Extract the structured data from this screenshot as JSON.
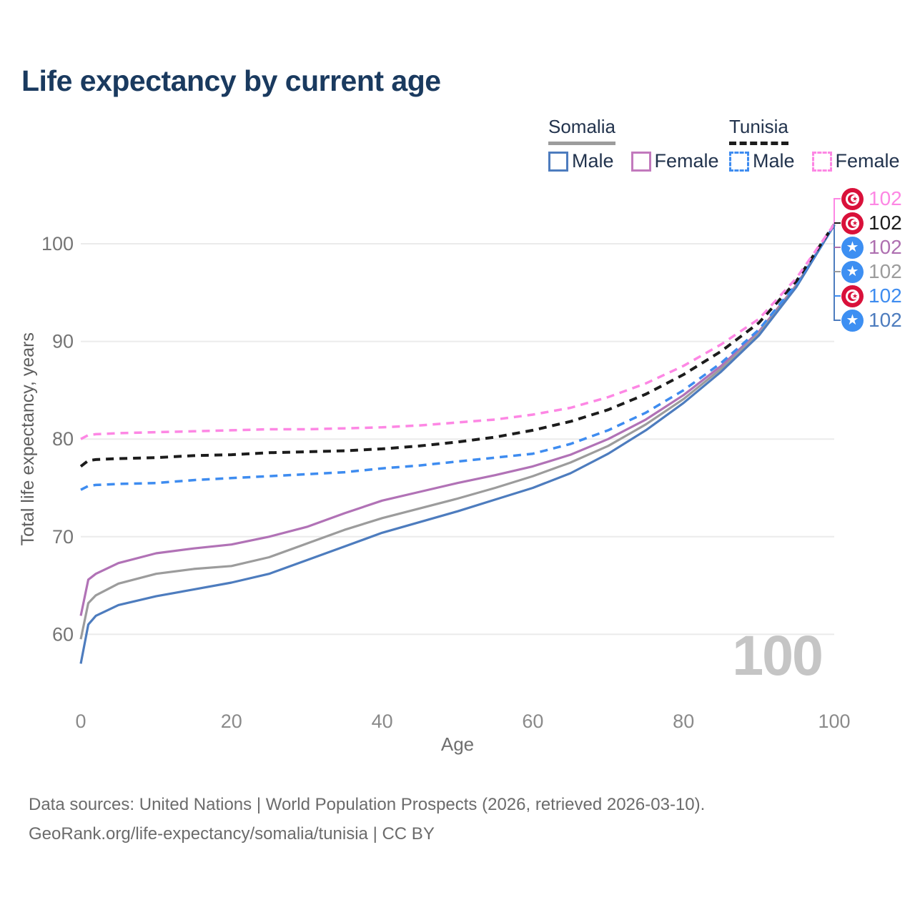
{
  "title": "Life expectancy by current age",
  "legend": {
    "somalia": {
      "label": "Somalia",
      "male": "Male",
      "female": "Female"
    },
    "tunisia": {
      "label": "Tunisia",
      "male": "Male",
      "female": "Female"
    }
  },
  "right_labels": [
    {
      "country": "tunisia",
      "series": "Tunisia Female",
      "value": "102",
      "color": "#fd87e4"
    },
    {
      "country": "tunisia",
      "series": "Tunisia",
      "value": "102",
      "color": "#1c1c1c"
    },
    {
      "country": "somalia",
      "series": "Somalia Female",
      "value": "102",
      "color": "#ae6fb0"
    },
    {
      "country": "somalia",
      "series": "Somalia",
      "value": "102",
      "color": "#9c9c9c"
    },
    {
      "country": "tunisia",
      "series": "Tunisia Male",
      "value": "102",
      "color": "#3e8cf0"
    },
    {
      "country": "somalia",
      "series": "Somalia Male",
      "value": "102",
      "color": "#4d7cbe"
    }
  ],
  "watermark": "100",
  "footer": {
    "line1": "Data sources: United Nations | World Population Prospects (2026, retrieved 2026-03-10).",
    "line2": "GeoRank.org/life-expectancy/somalia/tunisia | CC BY"
  },
  "chart_data": {
    "type": "line",
    "title": "Life expectancy by current age",
    "xlabel": "Age",
    "ylabel": "Total life expectancy, years",
    "xlim": [
      0,
      100
    ],
    "ylim": [
      56,
      103
    ],
    "x_ticks": [
      0,
      20,
      40,
      60,
      80,
      100
    ],
    "y_ticks": [
      60,
      70,
      80,
      90,
      100
    ],
    "grid": "horizontal",
    "legend_position": "top-right",
    "ages": [
      0,
      1,
      2,
      5,
      10,
      15,
      20,
      25,
      30,
      35,
      40,
      45,
      50,
      55,
      60,
      65,
      70,
      75,
      80,
      85,
      90,
      95,
      100
    ],
    "series": [
      {
        "name": "Somalia Female",
        "country": "Somalia",
        "sex": "female",
        "style": "solid",
        "color": "#b172b6",
        "end_label": "102",
        "values": [
          61.9,
          65.6,
          66.2,
          67.3,
          68.3,
          68.8,
          69.2,
          70.0,
          71.0,
          72.4,
          73.7,
          74.6,
          75.5,
          76.3,
          77.2,
          78.4,
          80.0,
          82.0,
          84.5,
          87.5,
          91.0,
          95.8,
          101.9
        ]
      },
      {
        "name": "Somalia",
        "country": "Somalia",
        "sex": "total",
        "style": "solid",
        "color": "#9c9c9c",
        "end_label": "102",
        "values": [
          59.5,
          63.2,
          64.0,
          65.2,
          66.2,
          66.7,
          67.0,
          67.9,
          69.3,
          70.7,
          71.9,
          72.9,
          73.9,
          75.0,
          76.2,
          77.6,
          79.3,
          81.5,
          84.1,
          87.2,
          90.8,
          95.7,
          101.9
        ]
      },
      {
        "name": "Somalia Male",
        "country": "Somalia",
        "sex": "male",
        "style": "solid",
        "color": "#4d7cbe",
        "end_label": "102",
        "values": [
          57.0,
          61.0,
          61.9,
          63.0,
          63.9,
          64.6,
          65.3,
          66.2,
          67.6,
          69.0,
          70.4,
          71.5,
          72.6,
          73.8,
          75.0,
          76.5,
          78.5,
          80.9,
          83.7,
          86.9,
          90.6,
          95.6,
          101.9
        ]
      },
      {
        "name": "Tunisia Male",
        "country": "Tunisia",
        "sex": "male",
        "style": "dashed",
        "color": "#3e8cf0",
        "end_label": "102",
        "values": [
          74.8,
          75.2,
          75.3,
          75.4,
          75.5,
          75.8,
          76.0,
          76.2,
          76.4,
          76.6,
          77.0,
          77.3,
          77.7,
          78.1,
          78.5,
          79.5,
          80.9,
          82.7,
          85.0,
          87.8,
          91.2,
          95.9,
          101.9
        ]
      },
      {
        "name": "Tunisia",
        "country": "Tunisia",
        "sex": "total",
        "style": "dashed",
        "color": "#1c1c1c",
        "end_label": "102",
        "values": [
          77.2,
          77.8,
          77.9,
          78.0,
          78.1,
          78.3,
          78.4,
          78.6,
          78.7,
          78.8,
          79.0,
          79.3,
          79.7,
          80.2,
          80.9,
          81.8,
          83.0,
          84.6,
          86.6,
          89.0,
          91.9,
          96.2,
          102.0
        ]
      },
      {
        "name": "Tunisia Female",
        "country": "Tunisia",
        "sex": "female",
        "style": "dashed",
        "color": "#fd87e4",
        "end_label": "102",
        "values": [
          80.0,
          80.4,
          80.5,
          80.6,
          80.7,
          80.8,
          80.9,
          81.0,
          81.0,
          81.1,
          81.2,
          81.4,
          81.7,
          82.0,
          82.5,
          83.2,
          84.3,
          85.7,
          87.5,
          89.7,
          92.3,
          96.5,
          102.0
        ]
      }
    ]
  }
}
